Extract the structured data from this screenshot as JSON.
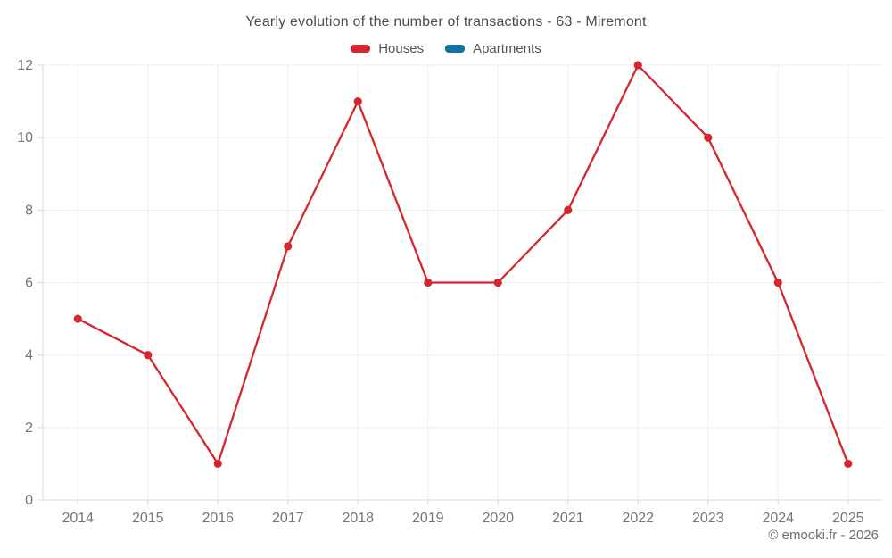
{
  "header": {
    "title": "Yearly evolution of the number of transactions - 63 - Miremont"
  },
  "legend": {
    "items": [
      {
        "label": "Houses",
        "color": "#d4262e"
      },
      {
        "label": "Apartments",
        "color": "#1273a3"
      }
    ]
  },
  "footer": {
    "copyright": "© emooki.fr - 2026"
  },
  "chart_data": {
    "type": "line",
    "title": "Yearly evolution of the number of transactions - 63 - Miremont",
    "categories": [
      "2014",
      "2015",
      "2016",
      "2017",
      "2018",
      "2019",
      "2020",
      "2021",
      "2022",
      "2023",
      "2024",
      "2025"
    ],
    "series": [
      {
        "name": "Houses",
        "color": "#d4262e",
        "marker": "circle",
        "values": [
          5,
          4,
          1,
          7,
          11,
          6,
          6,
          8,
          12,
          10,
          6,
          1
        ]
      },
      {
        "name": "Apartments",
        "color": "#1273a3",
        "marker": "circle",
        "values": []
      }
    ],
    "xlabel": "",
    "ylabel": "",
    "ylim": [
      0,
      12
    ],
    "yticks": [
      0,
      2,
      4,
      6,
      8,
      10,
      12
    ],
    "grid": true,
    "legend_position": "top",
    "grid_color": "#ededed",
    "axis_color": "#d9d9d9",
    "label_color": "#757575"
  }
}
